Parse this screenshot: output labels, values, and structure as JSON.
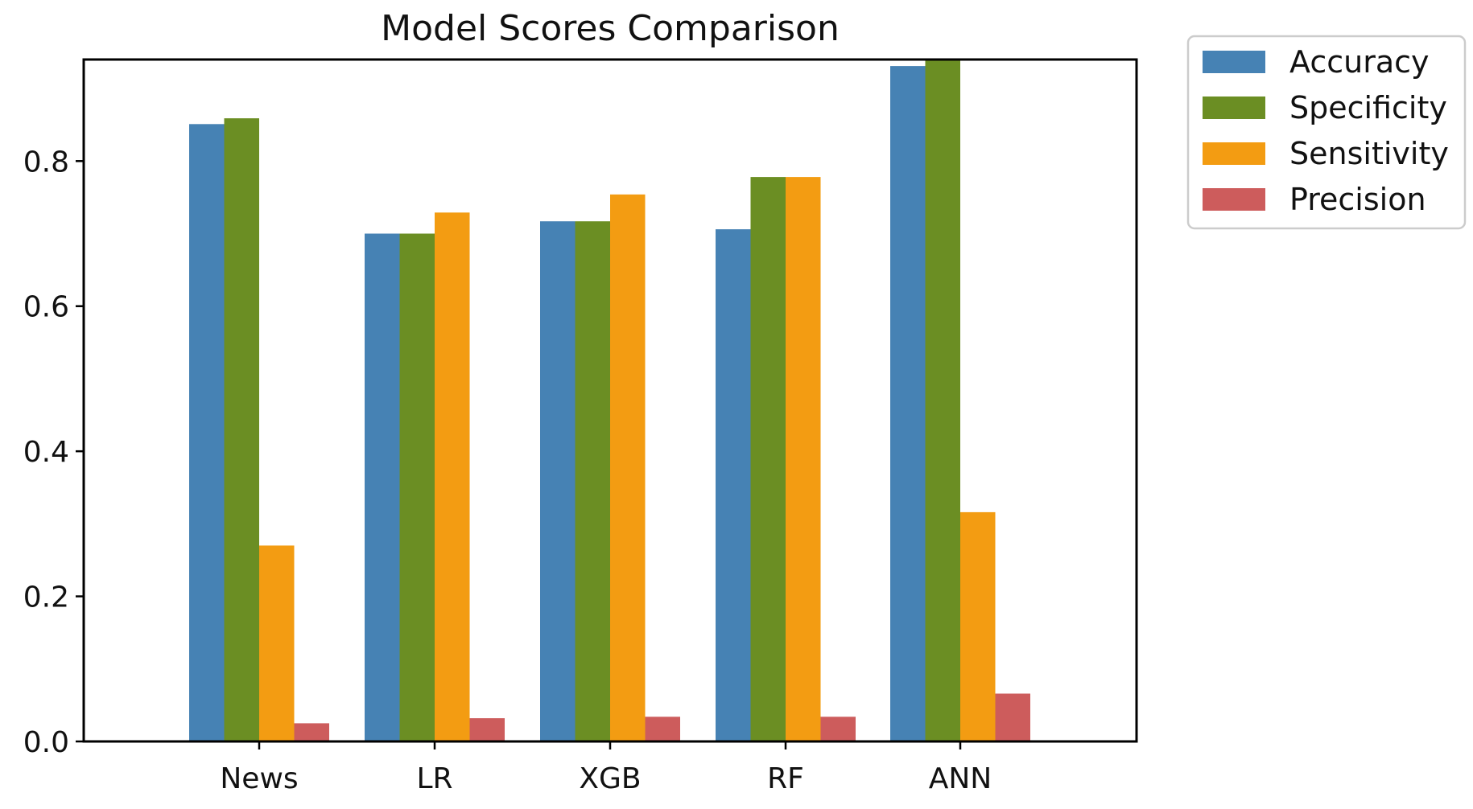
{
  "chart_data": {
    "type": "bar",
    "title": "Model Scores Comparison",
    "xlabel": "",
    "ylabel": "",
    "categories": [
      "News",
      "LR",
      "XGB",
      "RF",
      "ANN"
    ],
    "series": [
      {
        "name": "Accuracy",
        "color": "#4682b4",
        "values": [
          0.851,
          0.7,
          0.717,
          0.706,
          0.931
        ]
      },
      {
        "name": "Specificity",
        "color": "#6b8e23",
        "values": [
          0.859,
          0.7,
          0.717,
          0.778,
          0.939
        ]
      },
      {
        "name": "Sensitivity",
        "color": "#f39c12",
        "values": [
          0.27,
          0.729,
          0.754,
          0.778,
          0.316
        ]
      },
      {
        "name": "Precision",
        "color": "#cd5c5c",
        "values": [
          0.025,
          0.032,
          0.034,
          0.034,
          0.066
        ]
      }
    ],
    "ylim": [
      0,
      0.94
    ],
    "yticks": [
      0.0,
      0.2,
      0.4,
      0.6,
      0.8
    ],
    "ytick_labels": [
      "0.0",
      "0.2",
      "0.4",
      "0.6",
      "0.8"
    ],
    "grid": false,
    "legend_position": "outside-top-right"
  }
}
